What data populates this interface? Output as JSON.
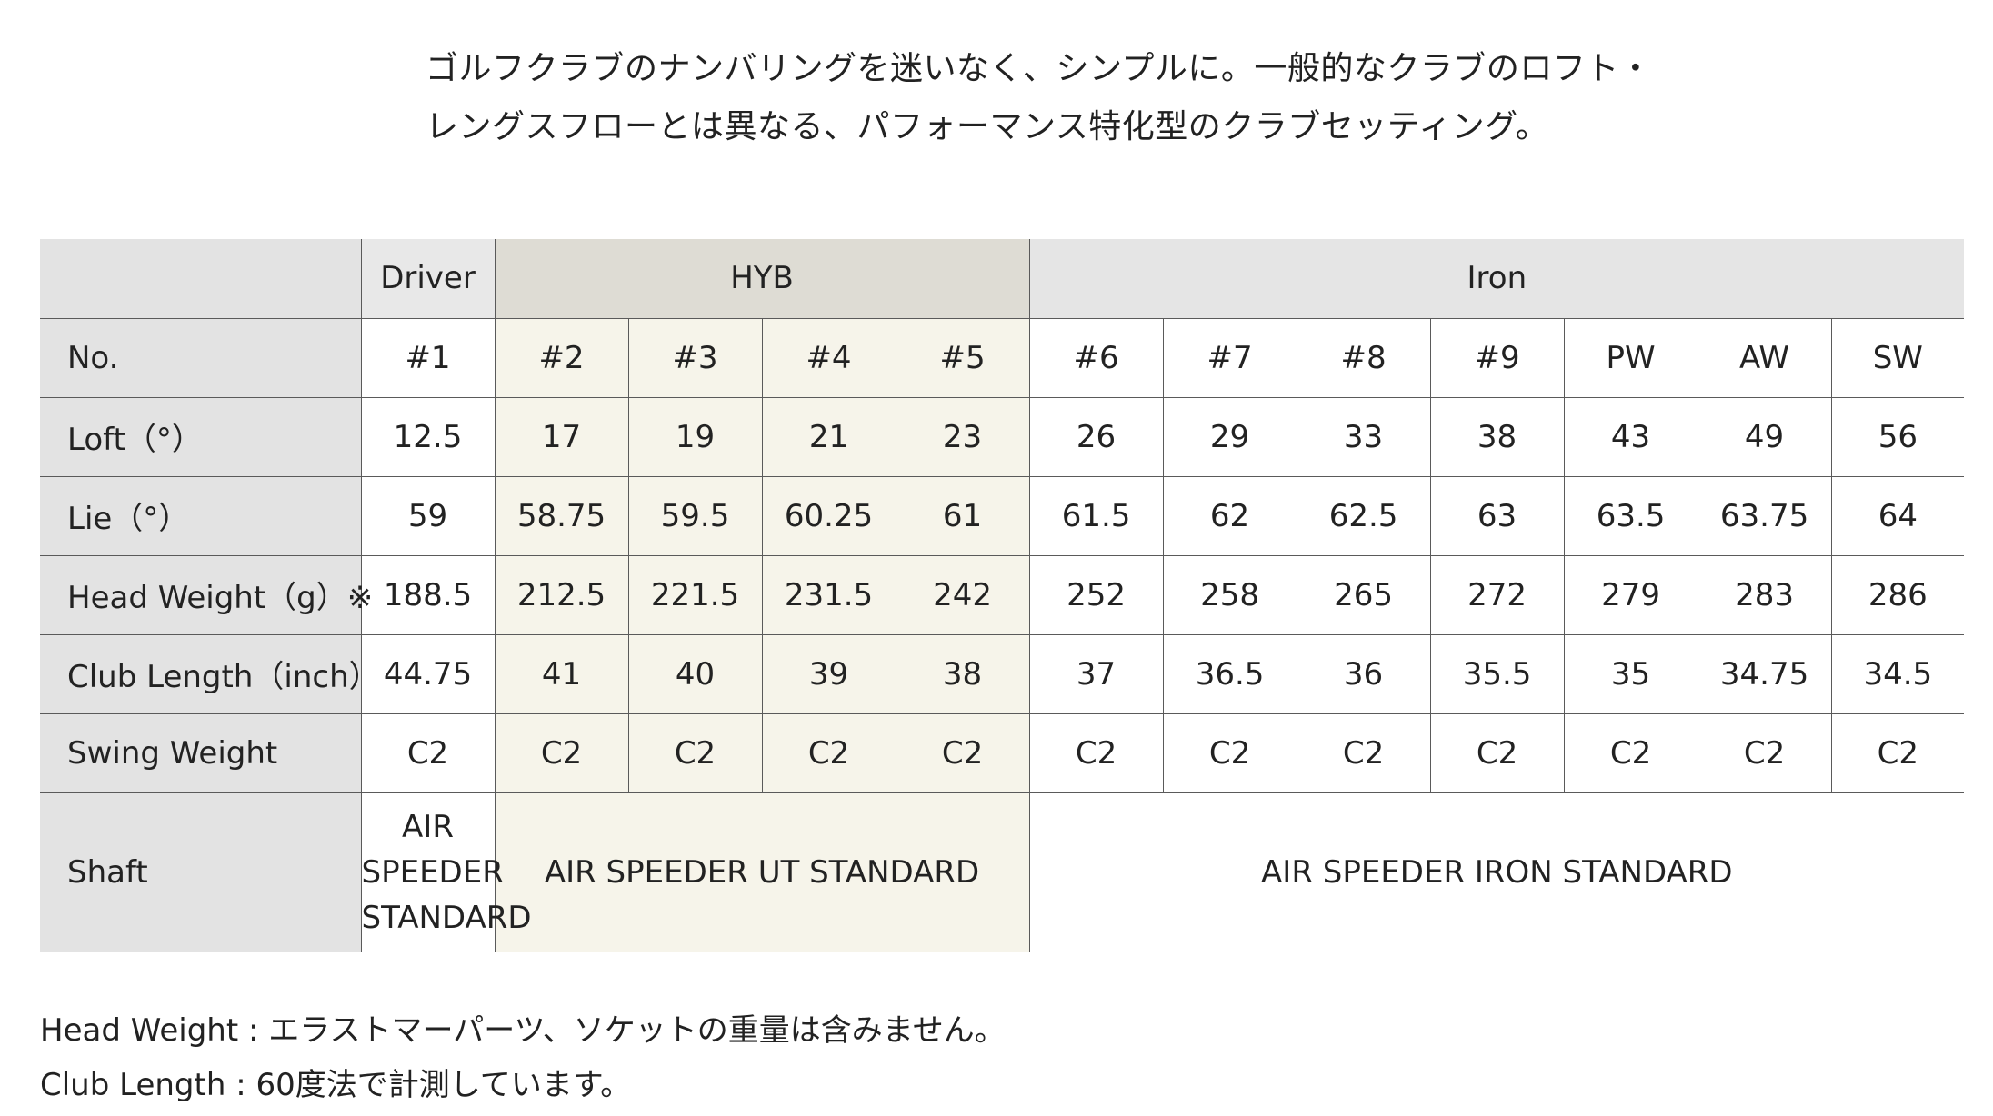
{
  "intro": {
    "line1": "ゴルフクラブのナンバリングを迷いなく、シンプルに。一般的なクラブのロフト・",
    "line2": "レングスフローとは異なる、パフォーマンス特化型のクラブセッティング。"
  },
  "table": {
    "groups": {
      "driver": "Driver",
      "hyb": "HYB",
      "iron": "Iron"
    },
    "rows": [
      {
        "label": "No.",
        "values": [
          "#1",
          "#2",
          "#3",
          "#4",
          "#5",
          "#6",
          "#7",
          "#8",
          "#9",
          "PW",
          "AW",
          "SW"
        ]
      },
      {
        "label": "Loft（°）",
        "values": [
          "12.5",
          "17",
          "19",
          "21",
          "23",
          "26",
          "29",
          "33",
          "38",
          "43",
          "49",
          "56"
        ]
      },
      {
        "label": "Lie（°）",
        "values": [
          "59",
          "58.75",
          "59.5",
          "60.25",
          "61",
          "61.5",
          "62",
          "62.5",
          "63",
          "63.5",
          "63.75",
          "64"
        ]
      },
      {
        "label": "Head Weight（g）※",
        "values": [
          "188.5",
          "212.5",
          "221.5",
          "231.5",
          "242",
          "252",
          "258",
          "265",
          "272",
          "279",
          "283",
          "286"
        ]
      },
      {
        "label": "Club Length（inch）",
        "values": [
          "44.75",
          "41",
          "40",
          "39",
          "38",
          "37",
          "36.5",
          "36",
          "35.5",
          "35",
          "34.75",
          "34.5"
        ]
      },
      {
        "label": "Swing Weight",
        "values": [
          "C2",
          "C2",
          "C2",
          "C2",
          "C2",
          "C2",
          "C2",
          "C2",
          "C2",
          "C2",
          "C2",
          "C2"
        ]
      }
    ],
    "shaft": {
      "label": "Shaft",
      "driver_lines": [
        "AIR",
        "SPEEDER",
        "STANDARD"
      ],
      "hyb": "AIR SPEEDER UT STANDARD",
      "iron": "AIR SPEEDER IRON STANDARD"
    }
  },
  "notes": {
    "line1": "Head Weight : エラストマーパーツ、ソケットの重量は含みません。",
    "line2": "Club Length : 60度法で計測しています。"
  },
  "colors": {
    "header_gray": "#e3e3e3",
    "hyb_header": "#dedcd4",
    "hyb_cell": "#f6f4ea",
    "border": "#5a5a5a"
  }
}
